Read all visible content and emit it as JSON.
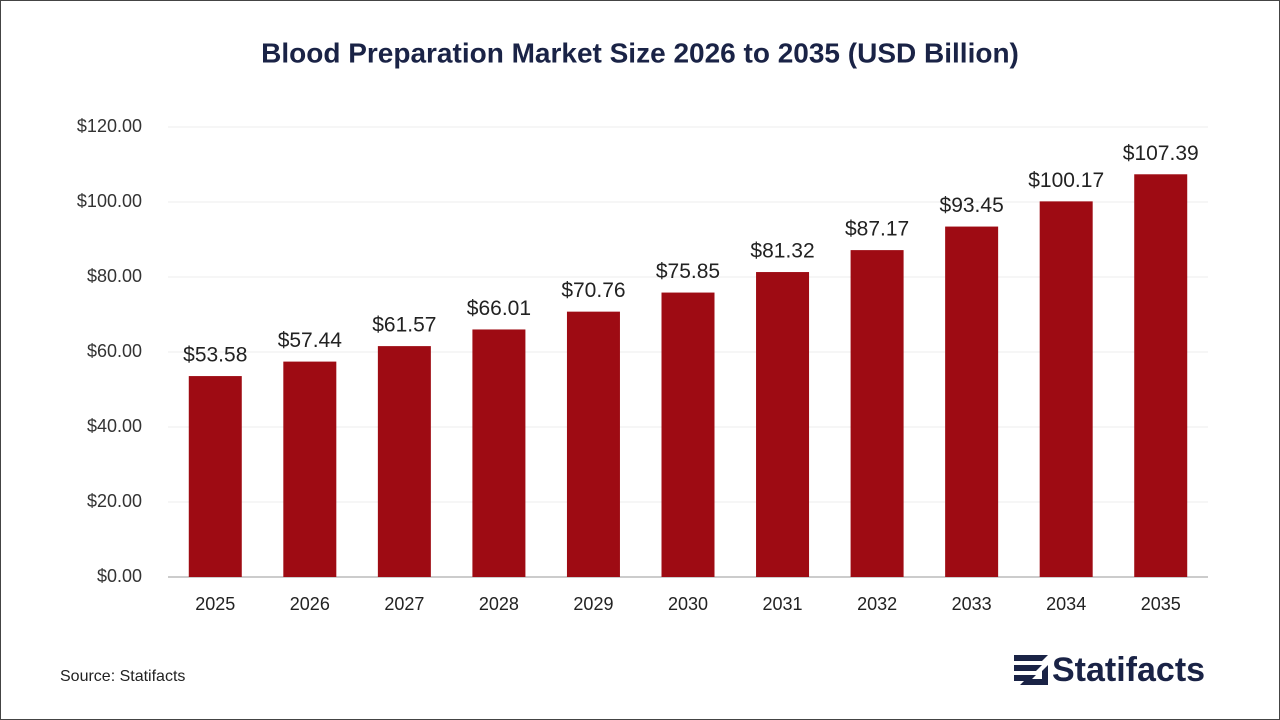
{
  "chart_data": {
    "type": "bar",
    "title": "Blood Preparation Market Size 2026 to 2035 (USD Billion)",
    "categories": [
      "2025",
      "2026",
      "2027",
      "2028",
      "2029",
      "2030",
      "2031",
      "2032",
      "2033",
      "2034",
      "2035"
    ],
    "values": [
      53.58,
      57.44,
      61.57,
      66.01,
      70.76,
      75.85,
      81.32,
      87.17,
      93.45,
      100.17,
      107.39
    ],
    "value_labels": [
      "$53.58",
      "$57.44",
      "$61.57",
      "$66.01",
      "$70.76",
      "$75.85",
      "$81.32",
      "$87.17",
      "$93.45",
      "$100.17",
      "$107.39"
    ],
    "color": "#9e0b13",
    "ylim": [
      0,
      120
    ],
    "yticks": [
      {
        "value": 0,
        "label": "$0.00"
      },
      {
        "value": 20,
        "label": "$20.00"
      },
      {
        "value": 40,
        "label": "$40.00"
      },
      {
        "value": 60,
        "label": "$60.00"
      },
      {
        "value": 80,
        "label": "$80.00"
      },
      {
        "value": 100,
        "label": "$100.00"
      },
      {
        "value": 120,
        "label": "$120.00"
      }
    ],
    "grid": true,
    "source": "Source: Statifacts"
  },
  "logo": {
    "text": "Statifacts"
  }
}
